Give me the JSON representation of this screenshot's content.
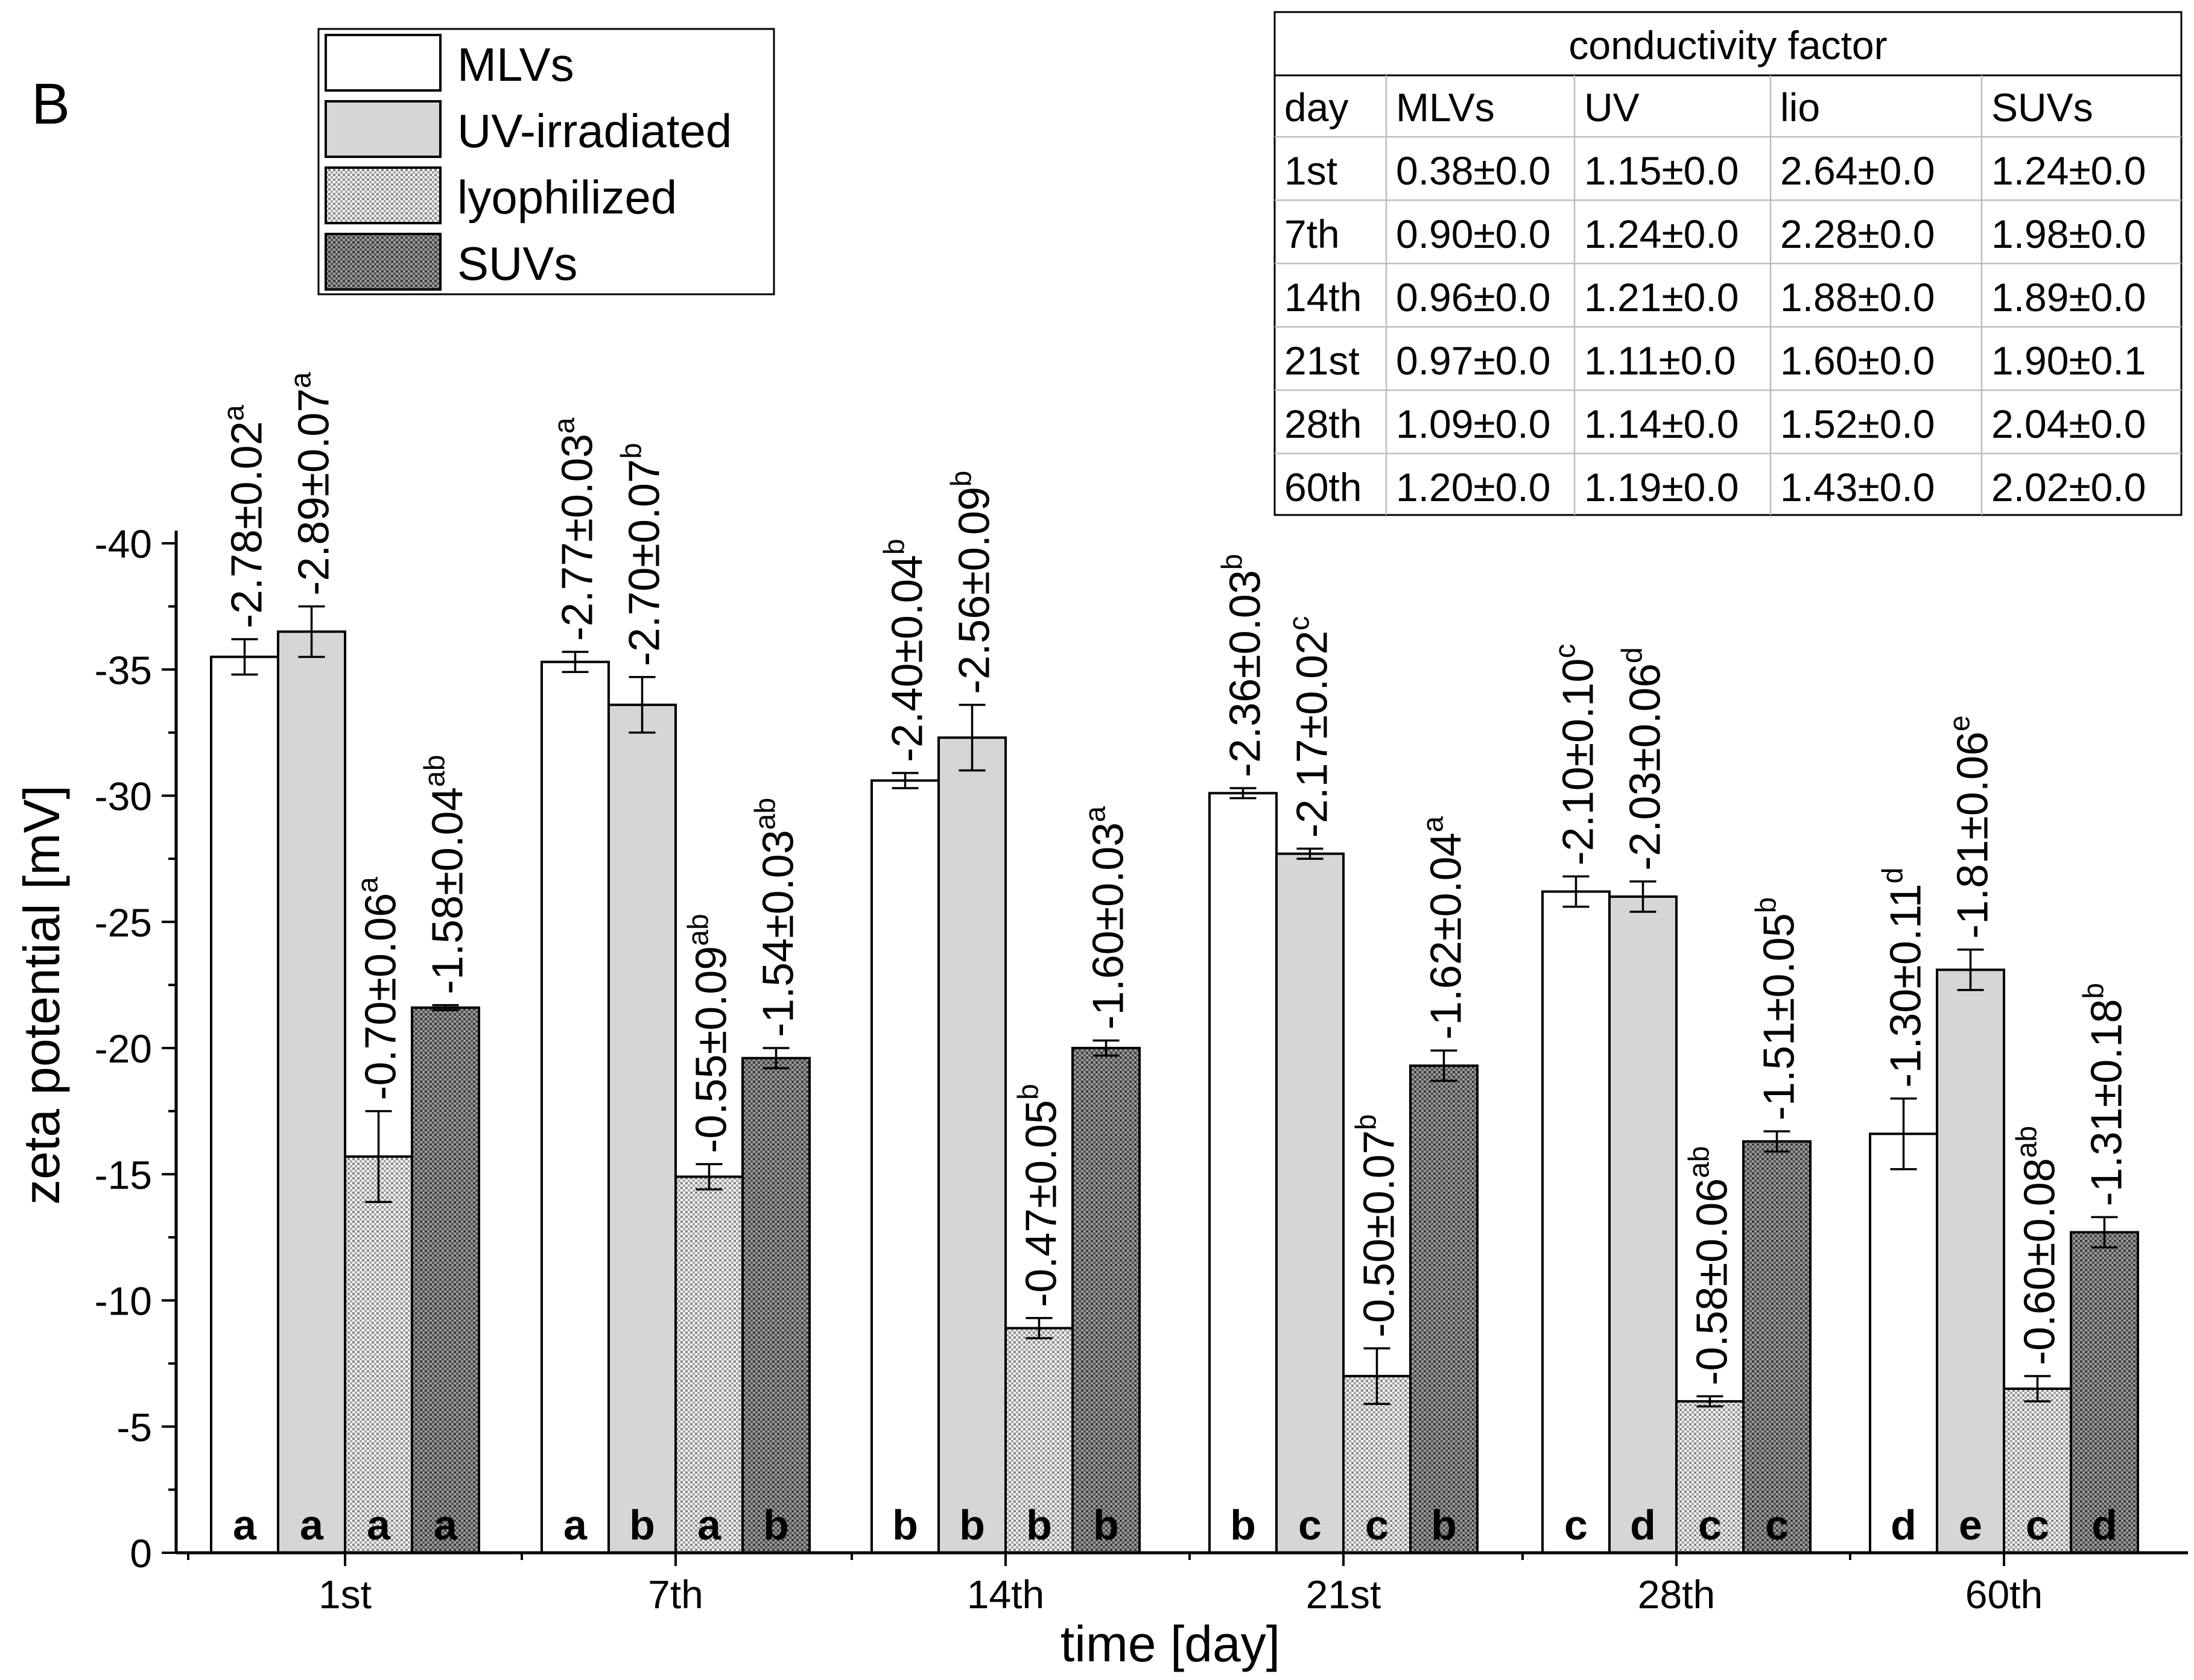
{
  "panel_label": "B",
  "chart_data": {
    "type": "bar",
    "title": "",
    "xlabel": "time [day]",
    "ylabel": "zeta potential [mV]",
    "ylim": [
      0,
      -40
    ],
    "yticks": [
      "0",
      "-5",
      "-10",
      "-15",
      "-20",
      "-25",
      "-30",
      "-35",
      "-40"
    ],
    "ytick_values": [
      0,
      -5,
      -10,
      -15,
      -20,
      -25,
      -30,
      -35,
      -40
    ],
    "categories": [
      "1st",
      "7th",
      "14th",
      "21st",
      "28th",
      "60th"
    ],
    "series": [
      {
        "name": "MLVs",
        "fill": "white",
        "values": [
          -35.5,
          -35.3,
          -30.6,
          -30.1,
          -26.2,
          -16.6
        ],
        "errors": [
          0.7,
          0.4,
          0.3,
          0.2,
          0.6,
          1.4
        ],
        "bar_letters": [
          "a",
          "a",
          "b",
          "b",
          "c",
          "d"
        ],
        "labels": [
          "-2.78±0.02",
          "-2.77±0.03",
          "-2.40±0.04",
          "-2.36±0.03",
          "-2.10±0.10",
          "-1.30±0.11"
        ],
        "label_sups": [
          "a",
          "a",
          "b",
          "b",
          "c",
          "d"
        ]
      },
      {
        "name": "UV-irradiated",
        "fill": "gray",
        "values": [
          -36.5,
          -33.6,
          -32.3,
          -27.7,
          -26.0,
          -23.1
        ],
        "errors": [
          1.0,
          1.1,
          1.3,
          0.2,
          0.6,
          0.8
        ],
        "bar_letters": [
          "a",
          "b",
          "b",
          "c",
          "d",
          "e"
        ],
        "labels": [
          "-2.89±0.07",
          "-2.70±0.07",
          "-2.56±0.09",
          "-2.17±0.02",
          "-2.03±0.06",
          "-1.81±0.06"
        ],
        "label_sups": [
          "a",
          "b",
          "b",
          "c",
          "d",
          "e"
        ]
      },
      {
        "name": "lyophilized",
        "fill": "light-dots",
        "values": [
          -15.7,
          -14.9,
          -8.9,
          -7.0,
          -6.0,
          -6.5
        ],
        "errors": [
          1.8,
          0.5,
          0.4,
          1.1,
          0.2,
          0.5
        ],
        "bar_letters": [
          "a",
          "a",
          "b",
          "c",
          "c",
          "c"
        ],
        "labels": [
          "-0.70±0.06",
          "-0.55±0.09",
          "-0.47±0.05",
          "-0.50±0.07",
          "-0.58±0.06",
          "-0.60±0.08"
        ],
        "label_sups": [
          "a",
          "ab",
          "b",
          "b",
          "ab",
          "ab"
        ]
      },
      {
        "name": "SUVs",
        "fill": "dark-dots",
        "values": [
          -21.6,
          -19.6,
          -20.0,
          -19.3,
          -16.3,
          -12.7
        ],
        "errors": [
          0.1,
          0.4,
          0.3,
          0.6,
          0.4,
          0.6
        ],
        "bar_letters": [
          "a",
          "b",
          "b",
          "b",
          "c",
          "d"
        ],
        "labels": [
          "-1.58±0.04",
          "-1.54±0.03",
          "-1.60±0.03",
          "-1.62±0.04",
          "-1.51±0.05",
          "-1.31±0.18"
        ],
        "label_sups": [
          "ab",
          "ab",
          "a",
          "a",
          "b",
          "b"
        ]
      }
    ],
    "legend": {
      "position": "top-left",
      "entries": [
        "MLVs",
        "UV-irradiated",
        "lyophilized",
        "SUVs"
      ]
    },
    "inset_table": {
      "position": "top-right",
      "title": "conductivity factor",
      "header": [
        "day",
        "MLVs",
        "UV",
        "lio",
        "SUVs"
      ],
      "rows": [
        [
          "1st",
          "0.38±0.0",
          "1.15±0.0",
          "2.64±0.0",
          "1.24±0.0"
        ],
        [
          "7th",
          "0.90±0.0",
          "1.24±0.0",
          "2.28±0.0",
          "1.98±0.0"
        ],
        [
          "14th",
          "0.96±0.0",
          "1.21±0.0",
          "1.88±0.0",
          "1.89±0.0"
        ],
        [
          "21st",
          "0.97±0.0",
          "1.11±0.0",
          "1.60±0.0",
          "1.90±0.1"
        ],
        [
          "28th",
          "1.09±0.0",
          "1.14±0.0",
          "1.52±0.0",
          "2.04±0.0"
        ],
        [
          "60th",
          "1.20±0.0",
          "1.19±0.0",
          "1.43±0.0",
          "2.02±0.0"
        ]
      ]
    }
  }
}
